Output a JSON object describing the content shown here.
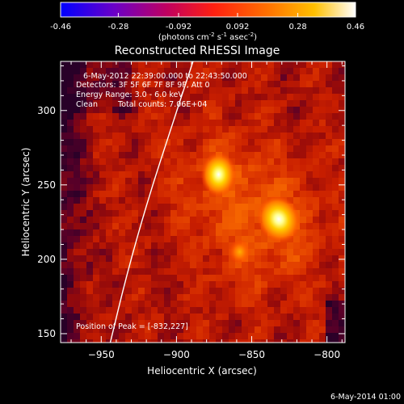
{
  "chart_data": {
    "type": "heatmap",
    "title": "Reconstructed RHESSI Image",
    "xlabel": "Heliocentric X (arcsec)",
    "ylabel": "Heliocentric Y (arcsec)",
    "xlim": [
      -977,
      -788
    ],
    "ylim": [
      144,
      333
    ],
    "x_ticks": [
      -950,
      -900,
      -850,
      -800
    ],
    "y_ticks": [
      150,
      200,
      250,
      300
    ],
    "grid": false,
    "colorbar": {
      "ticks": [
        -0.46,
        -0.28,
        -0.092,
        0.092,
        0.28,
        0.46
      ],
      "unit_prefix": "(photons cm",
      "unit_exp1": "-2",
      "unit_mid": " s",
      "unit_exp2": "-1",
      "unit_tail": " asec",
      "unit_exp3": "-2",
      "unit_suffix": ")",
      "range": [
        -0.46,
        0.46
      ]
    },
    "annotations": {
      "time": "6-May-2012 22:39:00.000 to 22:43:50.000",
      "detectors": "Detectors: 3F 5F 6F 7F 8F 9F, Att 0",
      "energy": "Energy Range: 3.0 - 6.0 keV",
      "algorithm": "Clean",
      "counts": "Total counts: 7.06E+04",
      "peak": "Position of Peak = [-832,227]"
    },
    "sources": [
      {
        "x": -872,
        "y": 257,
        "peak": 0.44
      },
      {
        "x": -832,
        "y": 227,
        "peak": 0.46
      },
      {
        "x": -858,
        "y": 205,
        "peak": 0.22
      }
    ],
    "limb_points": [
      [
        -944,
        144
      ],
      [
        -933,
        190
      ],
      [
        -919,
        240
      ],
      [
        -903,
        290
      ],
      [
        -889,
        333
      ]
    ]
  },
  "footer": {
    "date": "6-May-2014 01:00"
  }
}
